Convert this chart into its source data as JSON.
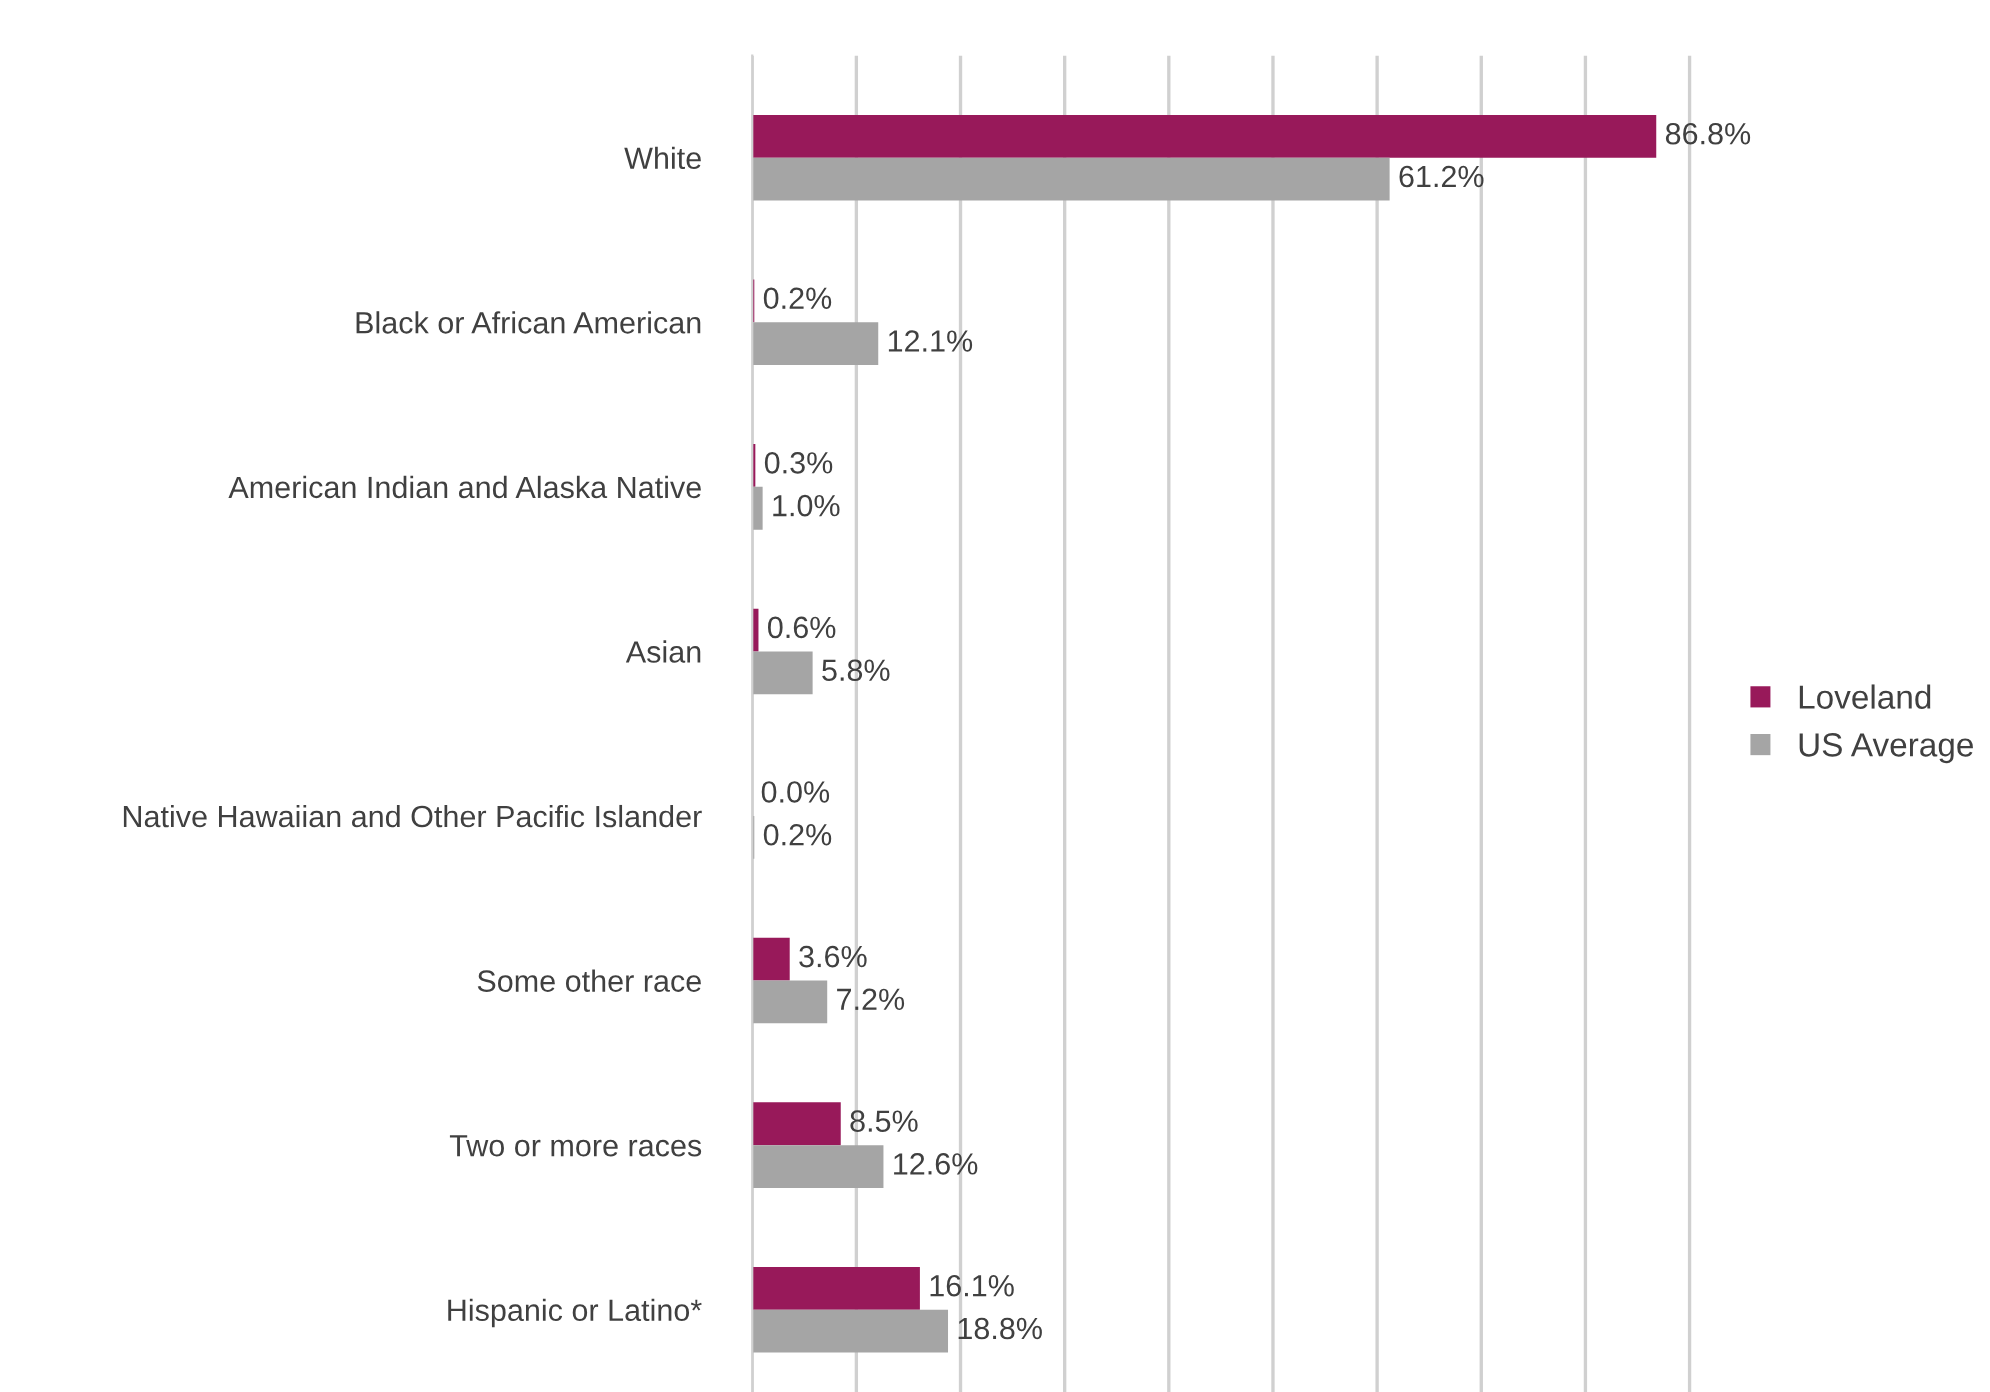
{
  "chart_data": {
    "type": "bar",
    "orientation": "horizontal",
    "categories": [
      "White",
      "Black or African American",
      "American Indian and Alaska Native",
      "Asian",
      "Native Hawaiian and Other Pacific Islander",
      "Some other race",
      "Two or more races",
      "Hispanic or Latino*"
    ],
    "series": [
      {
        "name": "Loveland",
        "color": "#98195a",
        "values": [
          86.8,
          0.2,
          0.3,
          0.6,
          0.0,
          3.6,
          8.5,
          16.1
        ],
        "value_labels": [
          "86.8%",
          "0.2%",
          "0.3%",
          "0.6%",
          "0.0%",
          "3.6%",
          "8.5%",
          "16.1%"
        ]
      },
      {
        "name": "US Average",
        "color": "#a5a5a5",
        "values": [
          61.2,
          12.1,
          1.0,
          5.8,
          0.2,
          7.2,
          12.6,
          18.8
        ],
        "value_labels": [
          "61.2%",
          "12.1%",
          "1.0%",
          "5.8%",
          "0.2%",
          "7.2%",
          "12.6%",
          "18.8%"
        ]
      }
    ],
    "tick_labels": "y",
    "grid": "x",
    "legend": "right"
  }
}
